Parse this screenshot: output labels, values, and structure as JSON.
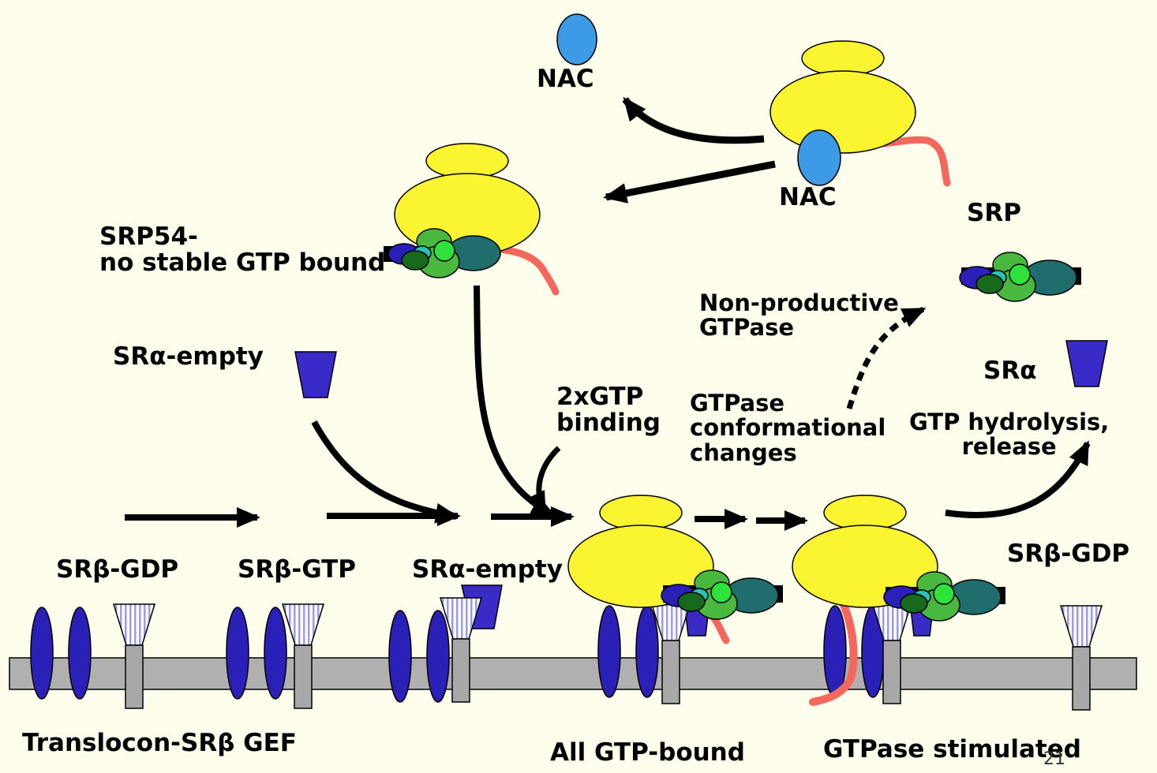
{
  "labels": {
    "nac_free": "NAC",
    "nac_bound": "NAC",
    "srp": "SRP",
    "srp54_state": "SRP54-\nno stable GTP bound",
    "sra_empty_top": "SRα-empty",
    "two_gtp_binding": "2xGTP\nbinding",
    "non_productive": "Non-productive\nGTPase",
    "gtpase_conformational": "GTPase\nconformational\nchanges",
    "sra_right": "SRα",
    "gtp_hydrolysis": "GTP hydrolysis,\nrelease",
    "srb_gdp_left": "SRβ-GDP",
    "srb_gtp": "SRβ-GTP",
    "sra_empty_membrane": "SRα-empty",
    "srb_gdp_right": "SRβ-GDP",
    "translocon_gef": "Translocon-SRβ GEF",
    "all_gtp_bound": "All GTP-bound",
    "gtpase_stimulated": "GTPase stimulated",
    "page_number": "21"
  },
  "colors": {
    "background": "#fffdeb",
    "ribosome": "#fbf430",
    "nac": "#3c9ae6",
    "nascent_chain": "#f4675c",
    "translocon": "#2a20b8",
    "sra_receptor": "#3a2bc8",
    "srb_striped": "#9b9be8",
    "membrane": "#b0b0b0",
    "srp_light_green": "#2fe23a",
    "srp_green": "#49b83f",
    "srp_dark_green": "#176a1c",
    "srp_teal": "#1f6d6d",
    "srp_cyan": "#2ac2b8",
    "srp_blue": "#2a20b8"
  }
}
